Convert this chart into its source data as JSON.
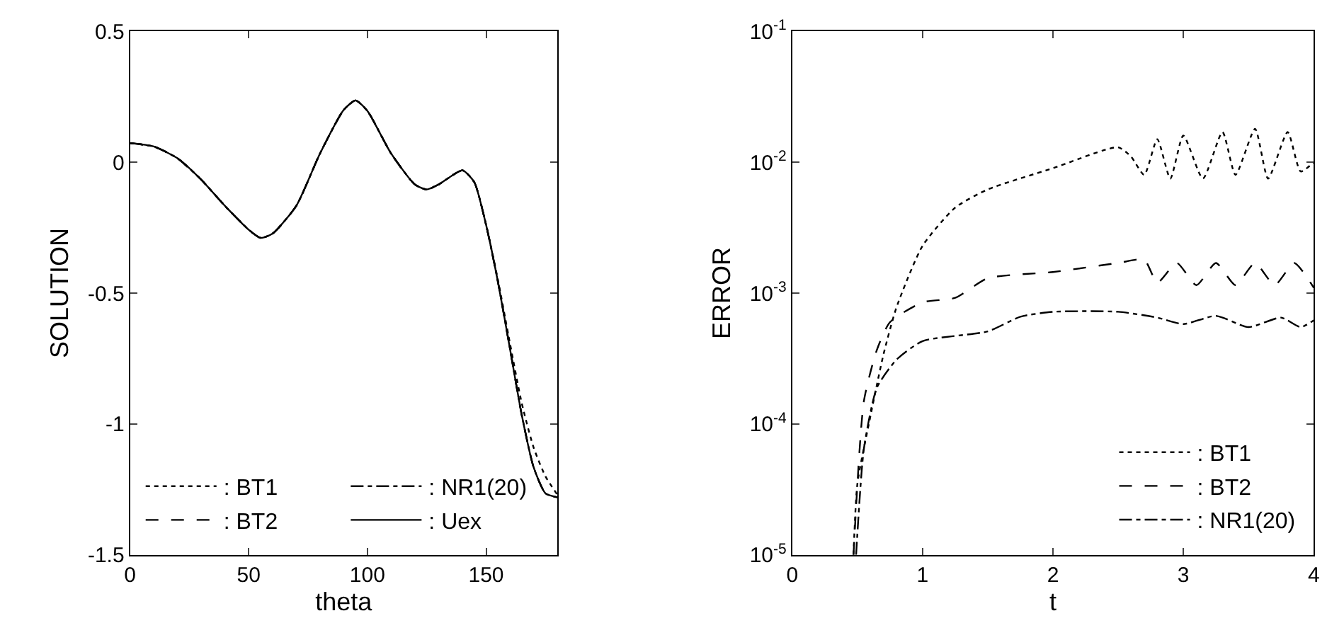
{
  "chart_data": [
    {
      "type": "line",
      "xlabel": "theta",
      "ylabel": "SOLUTION",
      "xlim": [
        0,
        180
      ],
      "ylim": [
        -1.5,
        0.5
      ],
      "xticks": [
        0,
        50,
        100,
        150
      ],
      "yticks": [
        -1.5,
        -1,
        -0.5,
        0,
        0.5
      ],
      "grid": false,
      "legend": "bottom left",
      "marker": "none",
      "x": [
        0,
        10,
        20,
        30,
        40,
        50,
        55,
        60,
        70,
        80,
        90,
        95,
        100,
        110,
        120,
        125,
        130,
        140,
        145,
        150,
        155,
        160,
        165,
        170,
        175,
        180
      ],
      "series": [
        {
          "name": ": BT1",
          "color": "#000000",
          "line_style": "dotted",
          "values": [
            0.073,
            0.06,
            0.015,
            -0.067,
            -0.167,
            -0.258,
            -0.289,
            -0.273,
            -0.167,
            0.033,
            0.2,
            0.236,
            0.196,
            0.033,
            -0.085,
            -0.104,
            -0.085,
            -0.031,
            -0.076,
            -0.24,
            -0.45,
            -0.69,
            -0.92,
            -1.09,
            -1.2,
            -1.27
          ]
        },
        {
          "name": ": NR1(20)",
          "color": "#000000",
          "line_style": "dashdot",
          "values": [
            0.073,
            0.06,
            0.015,
            -0.067,
            -0.167,
            -0.258,
            -0.289,
            -0.273,
            -0.167,
            0.033,
            0.2,
            0.236,
            0.196,
            0.033,
            -0.085,
            -0.104,
            -0.085,
            -0.031,
            -0.076,
            -0.24,
            -0.458,
            -0.71,
            -0.965,
            -1.165,
            -1.265,
            -1.28
          ]
        },
        {
          "name": ": BT2",
          "color": "#000000",
          "line_style": "dashed",
          "values": [
            0.073,
            0.06,
            0.015,
            -0.067,
            -0.167,
            -0.258,
            -0.289,
            -0.273,
            -0.167,
            0.033,
            0.2,
            0.236,
            0.196,
            0.033,
            -0.085,
            -0.104,
            -0.085,
            -0.031,
            -0.076,
            -0.24,
            -0.458,
            -0.71,
            -0.965,
            -1.165,
            -1.265,
            -1.28
          ]
        },
        {
          "name": ": Uex",
          "color": "#000000",
          "line_style": "solid",
          "values": [
            0.073,
            0.06,
            0.015,
            -0.067,
            -0.167,
            -0.258,
            -0.289,
            -0.273,
            -0.167,
            0.033,
            0.2,
            0.236,
            0.196,
            0.033,
            -0.085,
            -0.104,
            -0.085,
            -0.031,
            -0.076,
            -0.24,
            -0.458,
            -0.71,
            -0.965,
            -1.165,
            -1.265,
            -1.28
          ]
        }
      ]
    },
    {
      "type": "line",
      "xlabel": "t",
      "ylabel": "ERROR",
      "log": "y",
      "xlim": [
        0,
        4
      ],
      "ylim": [
        1e-05,
        0.1
      ],
      "xticks": [
        0,
        1,
        2,
        3,
        4
      ],
      "yticks": [
        {
          "value": 1e-05,
          "label": "10$^{-5}$"
        },
        {
          "value": 0.0001,
          "label": "10$^{-4}$"
        },
        {
          "value": 0.001,
          "label": "10$^{-3}$"
        },
        {
          "value": 0.01,
          "label": "10$^{-2}$"
        },
        {
          "value": 0.1,
          "label": "10$^{-1}$"
        }
      ],
      "grid": false,
      "legend": "bottom right",
      "marker": "none",
      "series": [
        {
          "name": ": BT1",
          "color": "#000000",
          "line_style": "dotted",
          "x": [
            0.47,
            0.5,
            0.6,
            0.7,
            0.8,
            1,
            1.25,
            1.5,
            2,
            2.5,
            2.6,
            2.7,
            2.8,
            2.9,
            3.0,
            3.15,
            3.3,
            3.4,
            3.55,
            3.65,
            3.8,
            3.9,
            4.0
          ],
          "values": [
            1e-05,
            3.5e-05,
            0.000115,
            0.00034,
            0.00078,
            0.0023,
            0.0045,
            0.0062,
            0.009,
            0.013,
            0.011,
            0.008,
            0.015,
            0.0075,
            0.016,
            0.0075,
            0.017,
            0.008,
            0.018,
            0.0075,
            0.017,
            0.0085,
            0.01
          ]
        },
        {
          "name": ": BT2",
          "color": "#000000",
          "line_style": "dashed",
          "x": [
            0.47,
            0.55,
            0.65,
            0.75,
            1,
            1.25,
            1.5,
            2,
            2.5,
            2.7,
            2.8,
            2.95,
            3.1,
            3.25,
            3.4,
            3.55,
            3.7,
            3.85,
            4.0
          ],
          "values": [
            1e-05,
            0.00015,
            0.00037,
            0.0006,
            0.00085,
            0.00092,
            0.0013,
            0.00145,
            0.0017,
            0.0018,
            0.0012,
            0.0017,
            0.00115,
            0.0017,
            0.00115,
            0.0017,
            0.00115,
            0.0017,
            0.0011
          ]
        },
        {
          "name": ": NR1(20)",
          "color": "#000000",
          "line_style": "dashdot",
          "x": [
            0.49,
            0.55,
            0.65,
            0.8,
            1,
            1.5,
            1.75,
            2,
            2.5,
            2.8,
            3.0,
            3.25,
            3.5,
            3.75,
            3.9,
            4.0
          ],
          "values": [
            1e-05,
            6.5e-05,
            0.00019,
            0.00031,
            0.00043,
            0.00051,
            0.00066,
            0.00072,
            0.00072,
            0.00065,
            0.00058,
            0.00067,
            0.00055,
            0.00065,
            0.00055,
            0.00062
          ]
        }
      ]
    }
  ]
}
